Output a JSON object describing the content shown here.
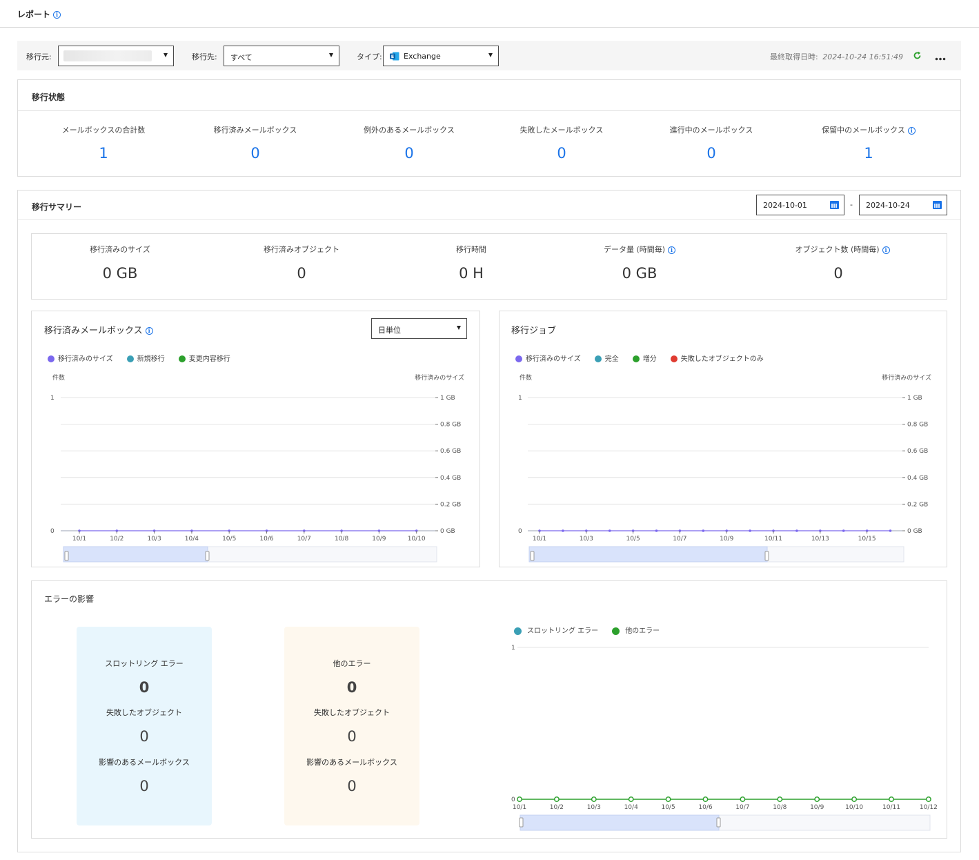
{
  "page": {
    "title": "レポート"
  },
  "filters": {
    "source_label": "移行元:",
    "dest_label": "移行先:",
    "dest_value": "すべて",
    "type_label": "タイプ:",
    "type_value": "Exchange",
    "last_fetched_label": "最終取得日時:",
    "last_fetched_value": "2024-10-24 16:51:49"
  },
  "migration_status": {
    "title": "移行状態",
    "stats": [
      {
        "label": "メールボックスの合計数",
        "value": "1"
      },
      {
        "label": "移行済みメールボックス",
        "value": "0"
      },
      {
        "label": "例外のあるメールボックス",
        "value": "0"
      },
      {
        "label": "失敗したメールボックス",
        "value": "0"
      },
      {
        "label": "進行中のメールボックス",
        "value": "0"
      },
      {
        "label": "保留中のメールボックス",
        "value": "1"
      }
    ]
  },
  "migration_summary": {
    "title": "移行サマリー",
    "date_from": "2024-10-01",
    "date_separator": "-",
    "date_to": "2024-10-24",
    "stats": [
      {
        "label": "移行済みのサイズ",
        "value": "0 GB"
      },
      {
        "label": "移行済みオブジェクト",
        "value": "0"
      },
      {
        "label": "移行時間",
        "value": "0 H"
      },
      {
        "label": "データ量 (時間毎)",
        "value": "0 GB"
      },
      {
        "label": "オブジェクト数 (時間毎)",
        "value": "0"
      }
    ]
  },
  "mailbox_chart": {
    "title": "移行済みメールボックス",
    "granularity": "日単位",
    "legend": [
      {
        "label": "移行済みのサイズ",
        "color": "#7b68ee"
      },
      {
        "label": "新規移行",
        "color": "#3a9fb5"
      },
      {
        "label": "変更内容移行",
        "color": "#2ca02c"
      }
    ],
    "left_axis_title": "件数",
    "right_axis_title": "移行済みのサイズ",
    "left_ticks": [
      "1",
      "0"
    ],
    "right_ticks": [
      "1 GB",
      "0.8 GB",
      "0.6 GB",
      "0.4 GB",
      "0.2 GB",
      "0 GB"
    ],
    "x_labels": [
      "10/1",
      "10/2",
      "10/3",
      "10/4",
      "10/5",
      "10/6",
      "10/7",
      "10/8",
      "10/9",
      "10/10"
    ]
  },
  "jobs_chart": {
    "title": "移行ジョブ",
    "legend": [
      {
        "label": "移行済みのサイズ",
        "color": "#7b68ee"
      },
      {
        "label": "完全",
        "color": "#3a9fb5"
      },
      {
        "label": "増分",
        "color": "#2ca02c"
      },
      {
        "label": "失敗したオブジェクトのみ",
        "color": "#e03c31"
      }
    ],
    "left_axis_title": "件数",
    "right_axis_title": "移行済みのサイズ",
    "left_ticks": [
      "1",
      "0"
    ],
    "right_ticks": [
      "1 GB",
      "0.8 GB",
      "0.6 GB",
      "0.4 GB",
      "0.2 GB",
      "0 GB"
    ],
    "x_labels": [
      "10/1",
      "10/3",
      "10/5",
      "10/7",
      "10/9",
      "10/11",
      "10/13",
      "10/15"
    ]
  },
  "error_impact": {
    "title": "エラーの影響",
    "throttling": {
      "label": "スロットリング エラー",
      "value": "0",
      "failed_label": "失敗したオブジェクト",
      "failed_value": "0",
      "affected_label": "影響のあるメールボックス",
      "affected_value": "0"
    },
    "other": {
      "label": "他のエラー",
      "value": "0",
      "failed_label": "失敗したオブジェクト",
      "failed_value": "0",
      "affected_label": "影響のあるメールボックス",
      "affected_value": "0"
    },
    "chart": {
      "legend": [
        {
          "label": "スロットリング エラー",
          "color": "#3a9fb5"
        },
        {
          "label": "他のエラー",
          "color": "#2ca02c"
        }
      ],
      "y_ticks": [
        "1",
        "0"
      ],
      "x_labels": [
        "10/1",
        "10/2",
        "10/3",
        "10/4",
        "10/5",
        "10/6",
        "10/7",
        "10/8",
        "10/9",
        "10/10",
        "10/11",
        "10/12"
      ]
    }
  },
  "chart_data": [
    {
      "type": "line",
      "title": "移行済みメールボックス",
      "categories": [
        "10/1",
        "10/2",
        "10/3",
        "10/4",
        "10/5",
        "10/6",
        "10/7",
        "10/8",
        "10/9",
        "10/10"
      ],
      "series": [
        {
          "name": "移行済みのサイズ",
          "values": [
            0,
            0,
            0,
            0,
            0,
            0,
            0,
            0,
            0,
            0
          ]
        }
      ],
      "ylabel": "件数",
      "ylabel_right": "移行済みのサイズ",
      "ylim": [
        0,
        1
      ],
      "ylim_right": [
        0,
        1
      ],
      "grid": true,
      "legend": "top-left"
    },
    {
      "type": "line",
      "title": "移行ジョブ",
      "categories": [
        "10/1",
        "10/2",
        "10/3",
        "10/4",
        "10/5",
        "10/6",
        "10/7",
        "10/8",
        "10/9",
        "10/10",
        "10/11",
        "10/12",
        "10/13",
        "10/14",
        "10/15",
        "10/16"
      ],
      "series": [
        {
          "name": "移行済みのサイズ",
          "values": [
            0,
            0,
            0,
            0,
            0,
            0,
            0,
            0,
            0,
            0,
            0,
            0,
            0,
            0,
            0,
            0
          ]
        }
      ],
      "ylabel": "件数",
      "ylabel_right": "移行済みのサイズ",
      "ylim": [
        0,
        1
      ],
      "ylim_right": [
        0,
        1
      ],
      "grid": true,
      "legend": "top-left"
    },
    {
      "type": "line",
      "title": "エラーの影響",
      "categories": [
        "10/1",
        "10/2",
        "10/3",
        "10/4",
        "10/5",
        "10/6",
        "10/7",
        "10/8",
        "10/9",
        "10/10",
        "10/11",
        "10/12"
      ],
      "series": [
        {
          "name": "他のエラー",
          "values": [
            0,
            0,
            0,
            0,
            0,
            0,
            0,
            0,
            0,
            0,
            0,
            0
          ]
        }
      ],
      "ylim": [
        0,
        1
      ],
      "grid": true,
      "legend": "top-left"
    }
  ]
}
